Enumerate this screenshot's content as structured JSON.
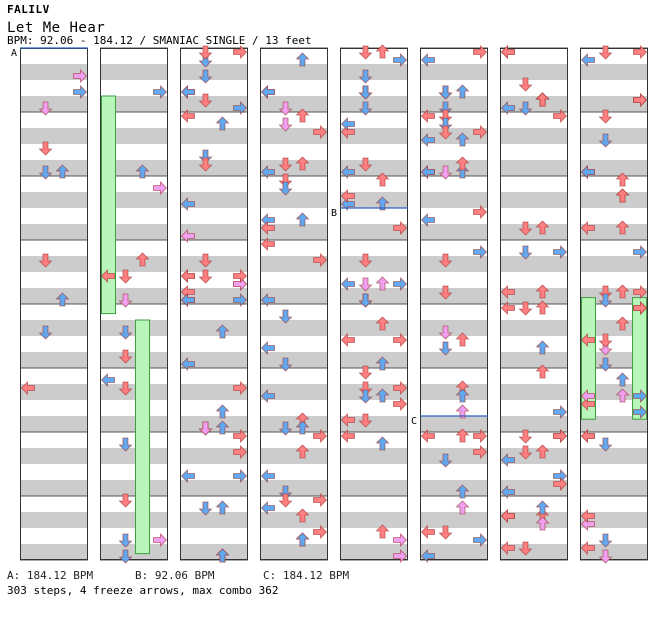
{
  "header": {
    "artist": "FALILV",
    "title": "Let Me Hear",
    "meta": "BPM: 92.06 - 184.12 / SMANIAC SINGLE / 13 feet"
  },
  "footer": {
    "bpm_a": "A: 184.12 BPM",
    "bpm_b": "B: 92.06 BPM",
    "bpm_c": "C: 184.12 BPM",
    "stats": "303 steps, 4 freeze arrows, max combo 362"
  },
  "markers": [
    {
      "label": "A",
      "measure": 0
    },
    {
      "label": "B",
      "measure": 34.5
    },
    {
      "label": "C",
      "measure": 45.75
    }
  ],
  "colors": {
    "quarter": "#ff8080",
    "eighth": "#60a8f0",
    "sixteenth": "#f0a0f0",
    "freeze": "#b8f5b8",
    "freeze_border": "#40a040",
    "stripe": "#cccccc"
  },
  "chart_data": {
    "type": "table",
    "measures_per_column": 8,
    "columns": 8,
    "freezes": [
      {
        "lane": 0,
        "start": 8.75,
        "end": 12.15
      },
      {
        "lane": 2,
        "start": 12.25,
        "end": 15.9
      },
      {
        "lane": 0,
        "start": 59.9,
        "end": 61.8
      },
      {
        "lane": 3,
        "start": 59.9,
        "end": 61.8
      }
    ]
  }
}
